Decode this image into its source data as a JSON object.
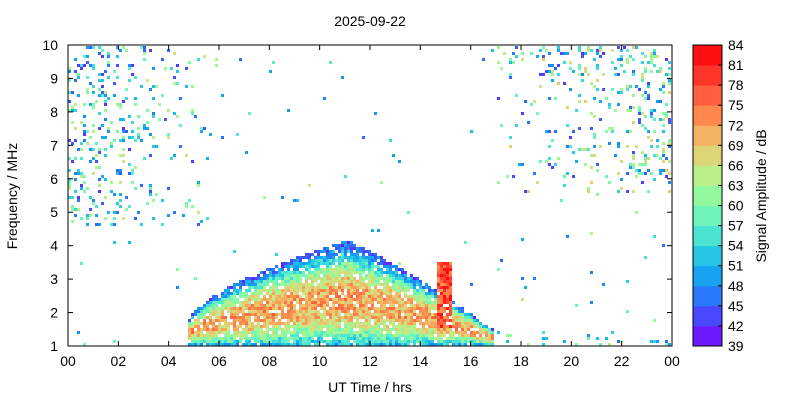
{
  "chart_data": {
    "type": "heatmap",
    "title": "2025-09-22",
    "xlabel": "UT Time / hrs",
    "ylabel": "Frequency / MHz",
    "colorbar_label": "Signal Amplitude / dB",
    "x_ticks": [
      "00",
      "02",
      "04",
      "06",
      "08",
      "10",
      "12",
      "14",
      "16",
      "18",
      "20",
      "22",
      "00"
    ],
    "x_range": [
      0,
      24
    ],
    "y_ticks": [
      "1",
      "2",
      "3",
      "4",
      "5",
      "6",
      "7",
      "8",
      "9",
      "10"
    ],
    "y_range": [
      1,
      10
    ],
    "colorbar_ticks": [
      "39",
      "42",
      "45",
      "48",
      "51",
      "54",
      "57",
      "60",
      "63",
      "66",
      "69",
      "72",
      "75",
      "78",
      "81",
      "84"
    ],
    "colorbar_range": [
      39,
      84
    ],
    "colorbar_colors": [
      "#8000ff",
      "#5b30ff",
      "#3860fd",
      "#1890f6",
      "#14b4ec",
      "#38d6dc",
      "#5ef0c8",
      "#80faac",
      "#a6f890",
      "#cde583",
      "#eac76f",
      "#fc9c55",
      "#ff7347",
      "#ff4b35",
      "#ff1f1f",
      "#ff0000"
    ],
    "regions": [
      {
        "name": "daytime-band",
        "t_start": 4.7,
        "t_end": 16.9,
        "f_low": 1.0,
        "f_peak": 4.1,
        "peak_t": 11.0,
        "amp_min": 45,
        "amp_max": 75
      },
      {
        "name": "burst",
        "t": 14.9,
        "f_low": 1.5,
        "f_high": 3.5,
        "amp_min": 72,
        "amp_max": 84
      },
      {
        "name": "night-scatter-early",
        "t_start": 0.0,
        "t_end": 5.5,
        "f_low": 4.5,
        "f_high": 9.9,
        "amp_min": 42,
        "amp_max": 66
      },
      {
        "name": "night-scatter-late",
        "t_start": 17.0,
        "t_end": 24.0,
        "f_low": 5.5,
        "f_high": 10.0,
        "amp_min": 42,
        "amp_max": 69
      },
      {
        "name": "lower-edge-scatter",
        "t_start": 16.9,
        "t_end": 24.0,
        "f_low": 1.0,
        "f_high": 1.4,
        "amp_min": 45,
        "amp_max": 66
      }
    ]
  }
}
